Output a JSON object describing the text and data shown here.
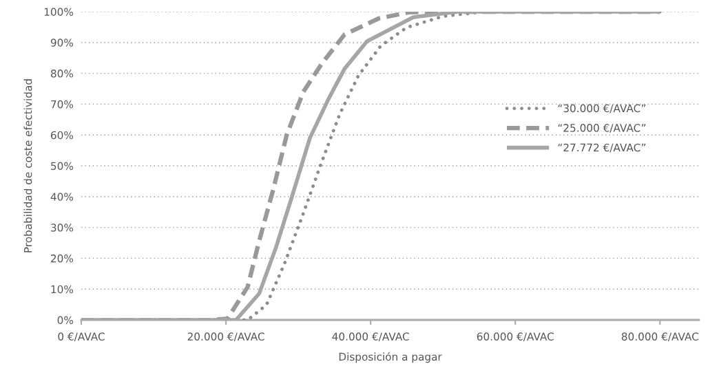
{
  "chart_data": {
    "type": "line",
    "xlabel": "Disposición a pagar",
    "ylabel": "Probabilidad de coste efectividad",
    "xlim": [
      0,
      85400
    ],
    "ylim": [
      0,
      100
    ],
    "xticks": [
      {
        "value": 0,
        "label": "0 €/AVAC"
      },
      {
        "value": 20000,
        "label": "20.000 €/AVAC"
      },
      {
        "value": 40000,
        "label": "40.000 €/AVAC"
      },
      {
        "value": 60000,
        "label": "60.000 €/AVAC"
      },
      {
        "value": 80000,
        "label": "80.000 €/AVAC"
      }
    ],
    "yticks": [
      {
        "value": 0,
        "label": "0%"
      },
      {
        "value": 10,
        "label": "10%"
      },
      {
        "value": 20,
        "label": "20%"
      },
      {
        "value": 30,
        "label": "30%"
      },
      {
        "value": 40,
        "label": "40%"
      },
      {
        "value": 50,
        "label": "50%"
      },
      {
        "value": 60,
        "label": "60%"
      },
      {
        "value": 70,
        "label": "70%"
      },
      {
        "value": 80,
        "label": "80%"
      },
      {
        "value": 90,
        "label": "90%"
      },
      {
        "value": 100,
        "label": "100%"
      }
    ],
    "grid": "y",
    "legend": "right",
    "series": [
      {
        "name": "“30.000 €/AVAC”",
        "color": "#8c8c8c",
        "line_style": "dotted",
        "x": [
          0,
          20000,
          23000,
          25600,
          28100,
          30700,
          33200,
          35700,
          38300,
          41400,
          45000,
          50000,
          55000,
          60000,
          80000
        ],
        "values": [
          0,
          0,
          0,
          4.9,
          18.3,
          34.6,
          51,
          66.6,
          79.2,
          88.9,
          94.9,
          98.5,
          99.8,
          100,
          100
        ]
      },
      {
        "name": "“25.000 €/AVAC”",
        "color": "#999999",
        "line_style": "dashed",
        "x": [
          0,
          18000,
          20200,
          23000,
          24600,
          26500,
          28400,
          30700,
          33200,
          36400,
          41100,
          45300,
          50000,
          80000
        ],
        "values": [
          0,
          0,
          0.4,
          10.7,
          25.7,
          42,
          60,
          74,
          83,
          92.6,
          97.8,
          99.8,
          100,
          100
        ]
      },
      {
        "name": "“27.772 €/AVAC”",
        "color": "#a6a6a6",
        "line_style": "solid",
        "x": [
          0,
          19000,
          21400,
          24600,
          26900,
          29100,
          31600,
          34200,
          36400,
          39500,
          45900,
          52000,
          80000
        ],
        "values": [
          0,
          0,
          0,
          8.6,
          23.4,
          39.8,
          59,
          71.8,
          81.5,
          90.4,
          98.2,
          100,
          100
        ]
      }
    ]
  }
}
